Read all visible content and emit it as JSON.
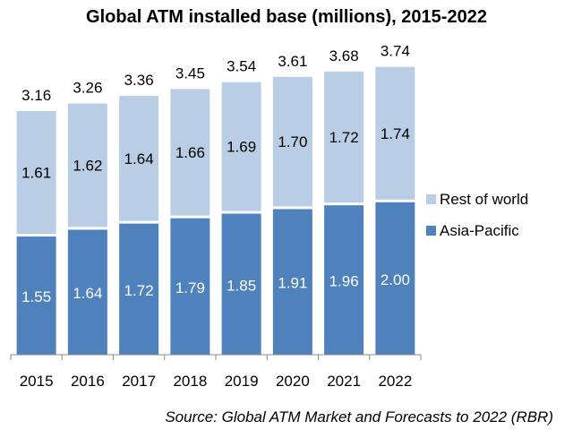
{
  "chart_data": {
    "type": "bar",
    "stacked": true,
    "title": "Global ATM installed base (millions), 2015-2022",
    "categories": [
      "2015",
      "2016",
      "2017",
      "2018",
      "2019",
      "2020",
      "2021",
      "2022"
    ],
    "series": [
      {
        "name": "Asia-Pacific",
        "color": "#4f81bd",
        "values": [
          1.55,
          1.64,
          1.72,
          1.79,
          1.85,
          1.91,
          1.96,
          2.0
        ],
        "labels": [
          "1.55",
          "1.64",
          "1.72",
          "1.79",
          "1.85",
          "1.91",
          "1.96",
          "2.00"
        ]
      },
      {
        "name": "Rest of world",
        "color": "#b9cde5",
        "values": [
          1.61,
          1.62,
          1.64,
          1.66,
          1.69,
          1.7,
          1.72,
          1.74
        ],
        "labels": [
          "1.61",
          "1.62",
          "1.64",
          "1.66",
          "1.69",
          "1.70",
          "1.72",
          "1.74"
        ]
      }
    ],
    "totals": [
      "3.16",
      "3.26",
      "3.36",
      "3.45",
      "3.54",
      "3.61",
      "3.68",
      "3.74"
    ],
    "legend": [
      {
        "name": "Rest of world",
        "color": "#b9cde5"
      },
      {
        "name": "Asia-Pacific",
        "color": "#4f81bd"
      }
    ],
    "legend_position": "right",
    "ylim": [
      0,
      4.5
    ],
    "grid": false,
    "xlabel": "",
    "ylabel": ""
  },
  "source": "Source: Global ATM Market and Forecasts to 2022 (RBR)"
}
